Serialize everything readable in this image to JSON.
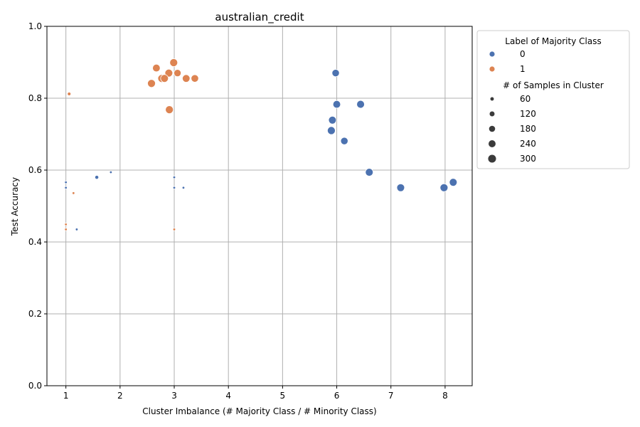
{
  "chart_data": {
    "type": "scatter",
    "title": "australian_credit",
    "xlabel": "Cluster Imbalance (# Majority Class / # Minority Class)",
    "ylabel": "Test Accuracy",
    "xlim": [
      0.65,
      8.5
    ],
    "ylim": [
      0,
      1
    ],
    "xticks": [
      "1",
      "2",
      "3",
      "4",
      "5",
      "6",
      "7",
      "8"
    ],
    "yticks": [
      "0.0",
      "0.2",
      "0.4",
      "0.6",
      "0.8",
      "1.0"
    ],
    "grid": true,
    "legend": {
      "placement": "outside upper-right",
      "hue_title": "Label of Majority Class",
      "hue_entries": [
        {
          "label": "0",
          "color": "#4c72b0"
        },
        {
          "label": "1",
          "color": "#dd8452"
        }
      ],
      "size_title": "# of Samples in Cluster",
      "size_entries": [
        {
          "label": "60",
          "value": 60
        },
        {
          "label": "120",
          "value": 120
        },
        {
          "label": "180",
          "value": 180
        },
        {
          "label": "240",
          "value": 240
        },
        {
          "label": "300",
          "value": 300
        }
      ]
    },
    "series": [
      {
        "name": "0",
        "color": "#4c72b0",
        "points": [
          {
            "x": 1.0,
            "y": 0.566,
            "size": 25
          },
          {
            "x": 1.0,
            "y": 0.551,
            "size": 20
          },
          {
            "x": 1.2,
            "y": 0.435,
            "size": 20
          },
          {
            "x": 1.57,
            "y": 0.58,
            "size": 70
          },
          {
            "x": 1.83,
            "y": 0.594,
            "size": 30
          },
          {
            "x": 3.0,
            "y": 0.58,
            "size": 15
          },
          {
            "x": 3.0,
            "y": 0.551,
            "size": 15
          },
          {
            "x": 3.17,
            "y": 0.551,
            "size": 30
          },
          {
            "x": 5.98,
            "y": 0.87,
            "size": 260
          },
          {
            "x": 6.0,
            "y": 0.783,
            "size": 280
          },
          {
            "x": 6.44,
            "y": 0.783,
            "size": 290
          },
          {
            "x": 5.92,
            "y": 0.739,
            "size": 290
          },
          {
            "x": 5.9,
            "y": 0.71,
            "size": 300
          },
          {
            "x": 6.14,
            "y": 0.681,
            "size": 260
          },
          {
            "x": 6.6,
            "y": 0.594,
            "size": 290
          },
          {
            "x": 7.18,
            "y": 0.551,
            "size": 290
          },
          {
            "x": 7.98,
            "y": 0.551,
            "size": 300
          },
          {
            "x": 8.15,
            "y": 0.566,
            "size": 290
          }
        ]
      },
      {
        "name": "1",
        "color": "#dd8452",
        "points": [
          {
            "x": 1.06,
            "y": 0.812,
            "size": 60
          },
          {
            "x": 1.14,
            "y": 0.536,
            "size": 20
          },
          {
            "x": 1.0,
            "y": 0.449,
            "size": 15
          },
          {
            "x": 1.0,
            "y": 0.435,
            "size": 20
          },
          {
            "x": 3.0,
            "y": 0.435,
            "size": 15
          },
          {
            "x": 2.67,
            "y": 0.884,
            "size": 280
          },
          {
            "x": 2.99,
            "y": 0.899,
            "size": 300
          },
          {
            "x": 2.9,
            "y": 0.87,
            "size": 290
          },
          {
            "x": 3.06,
            "y": 0.87,
            "size": 250
          },
          {
            "x": 2.77,
            "y": 0.855,
            "size": 300
          },
          {
            "x": 2.82,
            "y": 0.855,
            "size": 290
          },
          {
            "x": 3.22,
            "y": 0.855,
            "size": 280
          },
          {
            "x": 3.38,
            "y": 0.855,
            "size": 270
          },
          {
            "x": 2.58,
            "y": 0.841,
            "size": 300
          },
          {
            "x": 2.91,
            "y": 0.768,
            "size": 300
          }
        ]
      }
    ]
  }
}
